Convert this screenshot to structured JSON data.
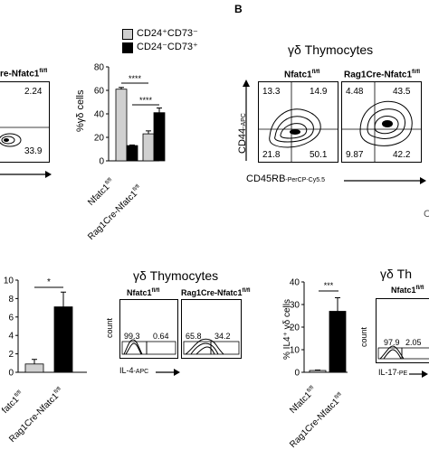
{
  "panel_label_b": "B",
  "legend": {
    "item1": "CD24⁺CD73⁻",
    "item2": "CD24⁻CD73⁺",
    "color1": "#d0d0d0",
    "color2": "#000000"
  },
  "top_left_flow": {
    "header": "re-Nfatc1",
    "header_sup": "fl/fl",
    "q_top_right": "2.24",
    "q_bottom_right": "33.9"
  },
  "chart_top": {
    "ylabel": "%γδ cells",
    "yticks": [
      "0",
      "20",
      "40",
      "60",
      "80"
    ],
    "xcats": [
      "Nfatc1",
      "Rag1Cre-Nfatc1"
    ],
    "xsup": "fl/fl",
    "sig": [
      "****",
      "****"
    ]
  },
  "right_top": {
    "title": "γδ Thymocytes",
    "col1": "Nfatc1",
    "col2": "Rag1Cre-Nfatc1",
    "sup": "fl/fl",
    "ylabel_main": "CD44",
    "ylabel_sub": "-APC",
    "xlabel_main": "CD45RB",
    "xlabel_sub": "-PerCP-Cy5.5",
    "plot1": {
      "tl": "13.3",
      "tr": "14.9",
      "bl": "21.8",
      "br": "50.1"
    },
    "plot2": {
      "tl": "4.48",
      "tr": "43.5",
      "bl": "9.87",
      "br": "42.2"
    },
    "edge": "C"
  },
  "chart_bottom_left": {
    "yticks": [
      "0",
      "2",
      "4",
      "6",
      "8",
      "10"
    ],
    "xcats": [
      "fatc1",
      "Rag1Cre-Nfatc1"
    ],
    "xsup": "fl/fl",
    "sig": "*"
  },
  "mid_bottom": {
    "title": "γδ Thymocytes",
    "col1": "Nfatc1",
    "col2": "Rag1Cre-Nfatc1",
    "sup": "fl/fl",
    "ylabel": "count",
    "xlabel_main": "IL-4",
    "xlabel_sub": "-APC",
    "plot1": {
      "left": "99.3",
      "right": "0.64"
    },
    "plot2": {
      "left": "65.8",
      "right": "34.2"
    }
  },
  "chart_bottom_right": {
    "ylabel": "% IL4⁺ γδ cells",
    "yticks": [
      "0",
      "10",
      "20",
      "30",
      "40"
    ],
    "xcats": [
      "Nfatc1",
      "Rag1Cre-Nfatc1"
    ],
    "xsup": "fl/fl",
    "sig": "***"
  },
  "right_bottom": {
    "title": "γδ Th",
    "col1": "Nfatc1",
    "sup": "fl/fl",
    "ylabel": "count",
    "xlabel_main": "IL-17",
    "xlabel_sub": "-PE",
    "plot1": {
      "left": "97.9",
      "right": "2.05"
    }
  },
  "chart_data": [
    {
      "type": "bar",
      "categories": [
        "Nfatc1 fl/fl",
        "Rag1Cre-Nfatc1 fl/fl"
      ],
      "series": [
        {
          "name": "CD24⁺CD73⁻",
          "values": [
            61,
            23
          ],
          "errors": [
            1.5,
            2.5
          ]
        },
        {
          "name": "CD24⁻CD73⁺",
          "values": [
            13,
            41
          ],
          "errors": [
            0.5,
            4
          ]
        }
      ],
      "ylabel": "%γδ cells",
      "ylim": [
        0,
        80
      ]
    },
    {
      "type": "bar",
      "categories": [
        "Nfatc1 fl/fl",
        "Rag1Cre-Nfatc1 fl/fl"
      ],
      "values": [
        0.9,
        7.1
      ],
      "errors": [
        0.5,
        1.6
      ],
      "ylim": [
        0,
        10
      ]
    },
    {
      "type": "bar",
      "categories": [
        "Nfatc1 fl/fl",
        "Rag1Cre-Nfatc1 fl/fl"
      ],
      "values": [
        0.8,
        27
      ],
      "errors": [
        0.2,
        6
      ],
      "ylabel": "% IL4⁺ γδ cells",
      "ylim": [
        0,
        40
      ]
    }
  ]
}
